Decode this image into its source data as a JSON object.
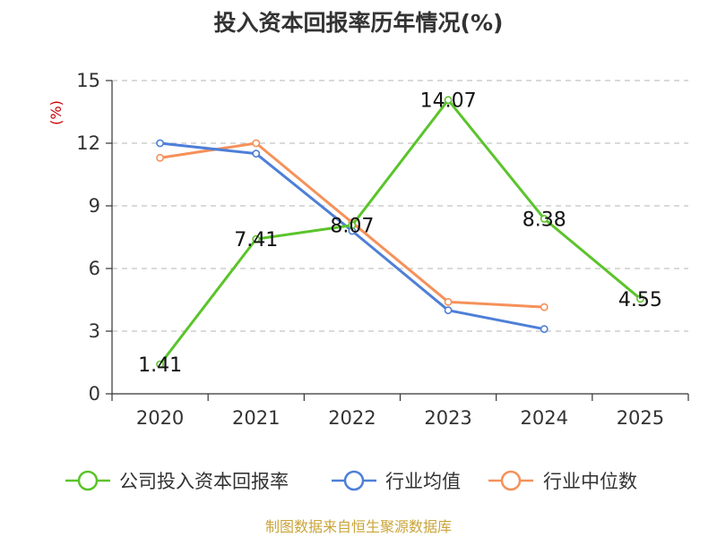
{
  "chart_data": {
    "type": "line",
    "title": "投入资本回报率历年情况(%)",
    "ylabel": "(%)",
    "categories": [
      "2020",
      "2021",
      "2022",
      "2023",
      "2024",
      "2025"
    ],
    "ylim": [
      0,
      15
    ],
    "yticks": [
      "0",
      "3",
      "6",
      "9",
      "12",
      "15"
    ],
    "grid": true,
    "legend_position": "bottom",
    "series": [
      {
        "name": "公司投入资本回报率",
        "color": "#5bc42b",
        "values": [
          1.41,
          7.41,
          8.07,
          14.07,
          8.38,
          4.55
        ],
        "labels": [
          "1.41",
          "7.41",
          "8.07",
          "14.07",
          "8.38",
          "4.55"
        ]
      },
      {
        "name": "行业均值",
        "color": "#4e7fd8",
        "values": [
          12.0,
          11.5,
          7.8,
          4.0,
          3.1,
          null
        ]
      },
      {
        "name": "行业中位数",
        "color": "#f5915a",
        "values": [
          11.3,
          12.0,
          8.2,
          4.4,
          4.15,
          null
        ]
      }
    ],
    "source": "制图数据来自恒生聚源数据库"
  }
}
